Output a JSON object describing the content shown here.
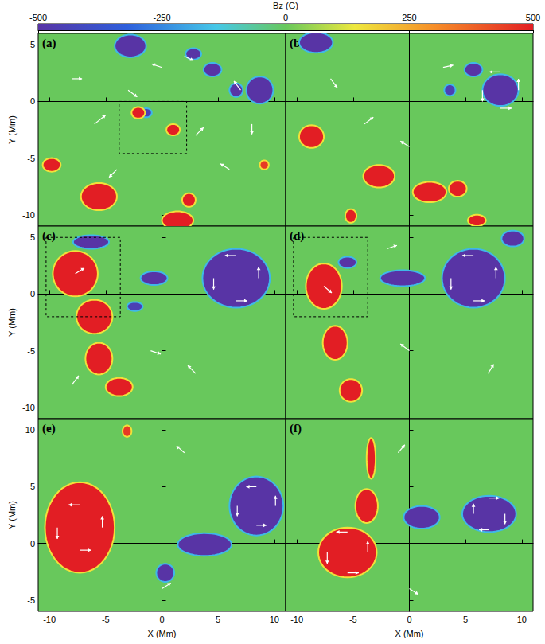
{
  "chart_data": [
    {
      "type": "colorbar",
      "title": "Bz (G)",
      "range": [
        -500,
        500
      ],
      "ticks": [
        -500,
        -250,
        0,
        250,
        500
      ]
    },
    {
      "type": "vector_map",
      "label": "(a)",
      "ylabel": "Y (Mm)",
      "tick_labels": "y",
      "xlim": [
        -11,
        11
      ],
      "ylim": [
        -11,
        6
      ],
      "xticks": [
        -10,
        -5,
        0,
        5,
        10
      ],
      "yticks": [
        -10,
        -5,
        0,
        5
      ],
      "patches": [
        {
          "x": -2.8,
          "y": 4.9,
          "rx": 1.4,
          "ry": 1.0,
          "bz": -500
        },
        {
          "x": 2.8,
          "y": 4.2,
          "rx": 0.7,
          "ry": 0.5,
          "bz": -500
        },
        {
          "x": 4.5,
          "y": 2.8,
          "rx": 0.8,
          "ry": 0.6,
          "bz": -500
        },
        {
          "x": 8.7,
          "y": 1.0,
          "rx": 1.2,
          "ry": 1.2,
          "bz": -500
        },
        {
          "x": 6.6,
          "y": 1.0,
          "rx": 0.6,
          "ry": 0.6,
          "bz": -500
        },
        {
          "x": -1.4,
          "y": -1.0,
          "rx": 0.5,
          "ry": 0.4,
          "bz": -450
        },
        {
          "x": -2.1,
          "y": -1.0,
          "rx": 0.6,
          "ry": 0.5,
          "bz": 500
        },
        {
          "x": 1.0,
          "y": -2.5,
          "rx": 0.6,
          "ry": 0.5,
          "bz": 500
        },
        {
          "x": -9.8,
          "y": -5.6,
          "rx": 0.8,
          "ry": 0.6,
          "bz": 500
        },
        {
          "x": -5.6,
          "y": -8.4,
          "rx": 1.6,
          "ry": 1.2,
          "bz": 500
        },
        {
          "x": 1.4,
          "y": -10.5,
          "rx": 1.4,
          "ry": 0.8,
          "bz": 500
        },
        {
          "x": 2.4,
          "y": -8.7,
          "rx": 0.6,
          "ry": 0.6,
          "bz": 500
        },
        {
          "x": 9.1,
          "y": -5.6,
          "rx": 0.4,
          "ry": 0.4,
          "bz": 450
        }
      ],
      "vectors": [
        [
          -6,
          -2,
          1,
          0.8
        ],
        [
          -3,
          1,
          0.8,
          -0.6
        ],
        [
          0,
          3,
          -0.9,
          0.3
        ],
        [
          3,
          -3,
          0.7,
          0.7
        ],
        [
          6,
          -6,
          -0.8,
          0.5
        ],
        [
          -8,
          2,
          0.9,
          0
        ],
        [
          8,
          -2,
          0,
          -0.9
        ],
        [
          2,
          4,
          0.8,
          -0.4
        ],
        [
          -4,
          -6,
          -0.7,
          -0.7
        ],
        [
          7,
          1.0,
          -0.6,
          0.8
        ]
      ],
      "boxes": [
        [
          -3.8,
          -4.6,
          2.2,
          0
        ]
      ]
    },
    {
      "type": "vector_map",
      "label": "(b)",
      "tick_labels": false,
      "xlim": [
        -11,
        11
      ],
      "ylim": [
        -11,
        6
      ],
      "xticks": [
        -10,
        -5,
        0,
        5,
        10
      ],
      "yticks": [
        -10,
        -5,
        0,
        5
      ],
      "patches": [
        {
          "x": -8.3,
          "y": 5.2,
          "rx": 1.5,
          "ry": 0.9,
          "bz": -500
        },
        {
          "x": 8.1,
          "y": 1.0,
          "rx": 1.6,
          "ry": 1.4,
          "bz": -500
        },
        {
          "x": 5.7,
          "y": 2.8,
          "rx": 0.8,
          "ry": 0.6,
          "bz": -500
        },
        {
          "x": 3.6,
          "y": 1.0,
          "rx": 0.5,
          "ry": 0.5,
          "bz": -450
        },
        {
          "x": -8.7,
          "y": -3.1,
          "rx": 1.1,
          "ry": 1.0,
          "bz": 500
        },
        {
          "x": -2.7,
          "y": -6.6,
          "rx": 1.4,
          "ry": 1.0,
          "bz": 500
        },
        {
          "x": 1.8,
          "y": -8.0,
          "rx": 1.5,
          "ry": 0.9,
          "bz": 500
        },
        {
          "x": 4.3,
          "y": -7.7,
          "rx": 0.8,
          "ry": 0.7,
          "bz": 500
        },
        {
          "x": 6.0,
          "y": -10.5,
          "rx": 0.8,
          "ry": 0.5,
          "bz": 500
        },
        {
          "x": -5.2,
          "y": -10.1,
          "rx": 0.5,
          "ry": 0.6,
          "bz": 500
        }
      ],
      "vectors": [
        [
          8.1,
          2.6,
          -1,
          0
        ],
        [
          6.5,
          1.0,
          0,
          -1
        ],
        [
          8.1,
          -0.6,
          1,
          0
        ],
        [
          9.7,
          1.0,
          0,
          1
        ],
        [
          -4,
          -2,
          0.8,
          0.6
        ],
        [
          0,
          -4,
          -0.8,
          0.5
        ],
        [
          -7,
          2,
          0.6,
          -0.8
        ],
        [
          3,
          3,
          0.9,
          0.2
        ]
      ],
      "boxes": []
    },
    {
      "type": "vector_map",
      "label": "(c)",
      "ylabel": "Y (Mm)",
      "tick_labels": "y",
      "xlim": [
        -11,
        11
      ],
      "ylim": [
        -11,
        6
      ],
      "xticks": [
        -10,
        -5,
        0,
        5,
        10
      ],
      "yticks": [
        -10,
        -5,
        0,
        5
      ],
      "patches": [
        {
          "x": -7.7,
          "y": 1.8,
          "rx": 2.0,
          "ry": 2.0,
          "bz": 500
        },
        {
          "x": -6.0,
          "y": -2.0,
          "rx": 1.6,
          "ry": 1.5,
          "bz": 500
        },
        {
          "x": -5.6,
          "y": -5.7,
          "rx": 1.2,
          "ry": 1.4,
          "bz": 500
        },
        {
          "x": -3.8,
          "y": -8.2,
          "rx": 1.2,
          "ry": 0.8,
          "bz": 500
        },
        {
          "x": -6.3,
          "y": 4.6,
          "rx": 1.6,
          "ry": 0.6,
          "bz": -500
        },
        {
          "x": 6.6,
          "y": 1.4,
          "rx": 3.0,
          "ry": 2.6,
          "bz": -500
        },
        {
          "x": -0.7,
          "y": 1.4,
          "rx": 1.2,
          "ry": 0.6,
          "bz": -500
        },
        {
          "x": -2.4,
          "y": -1.1,
          "rx": 0.7,
          "ry": 0.4,
          "bz": -450
        }
      ],
      "vectors": [
        [
          6.6,
          3.4,
          -1,
          0
        ],
        [
          4.6,
          1.4,
          0,
          -1
        ],
        [
          6.6,
          -0.6,
          1,
          0
        ],
        [
          8.6,
          1.4,
          0,
          1
        ],
        [
          -7.7,
          1.8,
          0.8,
          0.5
        ],
        [
          -1,
          -5,
          0.9,
          -0.3
        ],
        [
          3,
          -7,
          -0.7,
          0.7
        ],
        [
          -8,
          -8,
          0.6,
          0.8
        ]
      ],
      "boxes": [
        [
          -10.3,
          -2,
          -3.7,
          5
        ]
      ]
    },
    {
      "type": "vector_map",
      "label": "(d)",
      "tick_labels": false,
      "xlim": [
        -11,
        11
      ],
      "ylim": [
        -11,
        6
      ],
      "xticks": [
        -10,
        -5,
        0,
        5,
        10
      ],
      "yticks": [
        -10,
        -5,
        0,
        5
      ],
      "patches": [
        {
          "x": -7.6,
          "y": 0.7,
          "rx": 1.6,
          "ry": 2.0,
          "bz": 500
        },
        {
          "x": -6.6,
          "y": -4.3,
          "rx": 1.1,
          "ry": 1.5,
          "bz": 500
        },
        {
          "x": -5.2,
          "y": -8.5,
          "rx": 1.0,
          "ry": 1.0,
          "bz": 500
        },
        {
          "x": -5.5,
          "y": 2.8,
          "rx": 0.8,
          "ry": 0.5,
          "bz": -500
        },
        {
          "x": -0.6,
          "y": 1.4,
          "rx": 2.0,
          "ry": 0.7,
          "bz": -500
        },
        {
          "x": 5.7,
          "y": 1.4,
          "rx": 2.8,
          "ry": 2.6,
          "bz": -500
        },
        {
          "x": 9.2,
          "y": 4.9,
          "rx": 1.0,
          "ry": 0.7,
          "bz": -500
        }
      ],
      "vectors": [
        [
          5.7,
          3.4,
          -1,
          0
        ],
        [
          3.7,
          1.4,
          0,
          -1
        ],
        [
          5.7,
          -0.6,
          1,
          0
        ],
        [
          7.7,
          1.4,
          0,
          1
        ],
        [
          -7.6,
          0.7,
          0.7,
          -0.6
        ],
        [
          0,
          -5,
          -0.8,
          0.6
        ],
        [
          -2,
          4,
          0.9,
          0.3
        ],
        [
          7,
          -7,
          0.5,
          0.8
        ]
      ],
      "boxes": [
        [
          -10.3,
          -2,
          -3.7,
          5
        ]
      ]
    },
    {
      "type": "vector_map",
      "label": "(e)",
      "ylabel": "Y (Mm)",
      "xlabel": "X (Mm)",
      "xlim": [
        -11,
        11
      ],
      "ylim": [
        -6,
        11
      ],
      "xticks": [
        -10,
        -5,
        0,
        5,
        10
      ],
      "yticks": [
        -5,
        0,
        5,
        10
      ],
      "patches": [
        {
          "x": -7.3,
          "y": 1.4,
          "rx": 3.1,
          "ry": 4.0,
          "bz": 500
        },
        {
          "x": -3.1,
          "y": 9.9,
          "rx": 0.4,
          "ry": 0.5,
          "bz": 450
        },
        {
          "x": 8.4,
          "y": 3.3,
          "rx": 2.4,
          "ry": 2.6,
          "bz": -500
        },
        {
          "x": 3.8,
          "y": -0.1,
          "rx": 2.4,
          "ry": 1.0,
          "bz": -500
        },
        {
          "x": 0.3,
          "y": -2.6,
          "rx": 0.8,
          "ry": 0.8,
          "bz": -500
        }
      ],
      "vectors": [
        [
          -7.3,
          3.4,
          -1,
          0
        ],
        [
          -9.3,
          1.4,
          0,
          -1
        ],
        [
          -7.3,
          -0.6,
          1,
          0
        ],
        [
          -5.3,
          1.4,
          0,
          1
        ],
        [
          8.4,
          5.0,
          -0.9,
          0
        ],
        [
          6.7,
          3.3,
          0,
          -0.9
        ],
        [
          8.4,
          1.6,
          0.9,
          0
        ],
        [
          10.1,
          3.3,
          0,
          0.9
        ],
        [
          0,
          -4,
          0.8,
          0.5
        ],
        [
          2,
          8,
          -0.7,
          0.6
        ]
      ],
      "boxes": []
    },
    {
      "type": "vector_map",
      "label": "(f)",
      "xlabel": "X (Mm)",
      "tick_labels": "x",
      "xlim": [
        -11,
        11
      ],
      "ylim": [
        -6,
        11
      ],
      "xticks": [
        -10,
        -5,
        0,
        5,
        10
      ],
      "yticks": [
        -5,
        0,
        5,
        10
      ],
      "patches": [
        {
          "x": -5.5,
          "y": -0.8,
          "rx": 2.6,
          "ry": 2.2,
          "bz": 500
        },
        {
          "x": -3.8,
          "y": 3.3,
          "rx": 1.0,
          "ry": 1.5,
          "bz": 500
        },
        {
          "x": -3.4,
          "y": 7.5,
          "rx": 0.4,
          "ry": 1.8,
          "bz": 500
        },
        {
          "x": 7.1,
          "y": 2.6,
          "rx": 2.4,
          "ry": 1.6,
          "bz": -500
        },
        {
          "x": 1.1,
          "y": 2.3,
          "rx": 1.6,
          "ry": 1.0,
          "bz": -500
        }
      ],
      "vectors": [
        [
          -5.5,
          1.0,
          -1,
          0
        ],
        [
          -7.3,
          -0.8,
          0,
          -1
        ],
        [
          -5.5,
          -2.6,
          1,
          0
        ],
        [
          -3.7,
          -0.8,
          0,
          1
        ],
        [
          7.1,
          4.0,
          0.9,
          0
        ],
        [
          8.5,
          2.6,
          0,
          -0.9
        ],
        [
          7.1,
          1.2,
          -0.9,
          0
        ],
        [
          5.7,
          2.6,
          0,
          0.9
        ],
        [
          0,
          -4,
          0.8,
          -0.5
        ],
        [
          -1,
          8,
          0.6,
          0.7
        ]
      ],
      "boxes": []
    }
  ]
}
